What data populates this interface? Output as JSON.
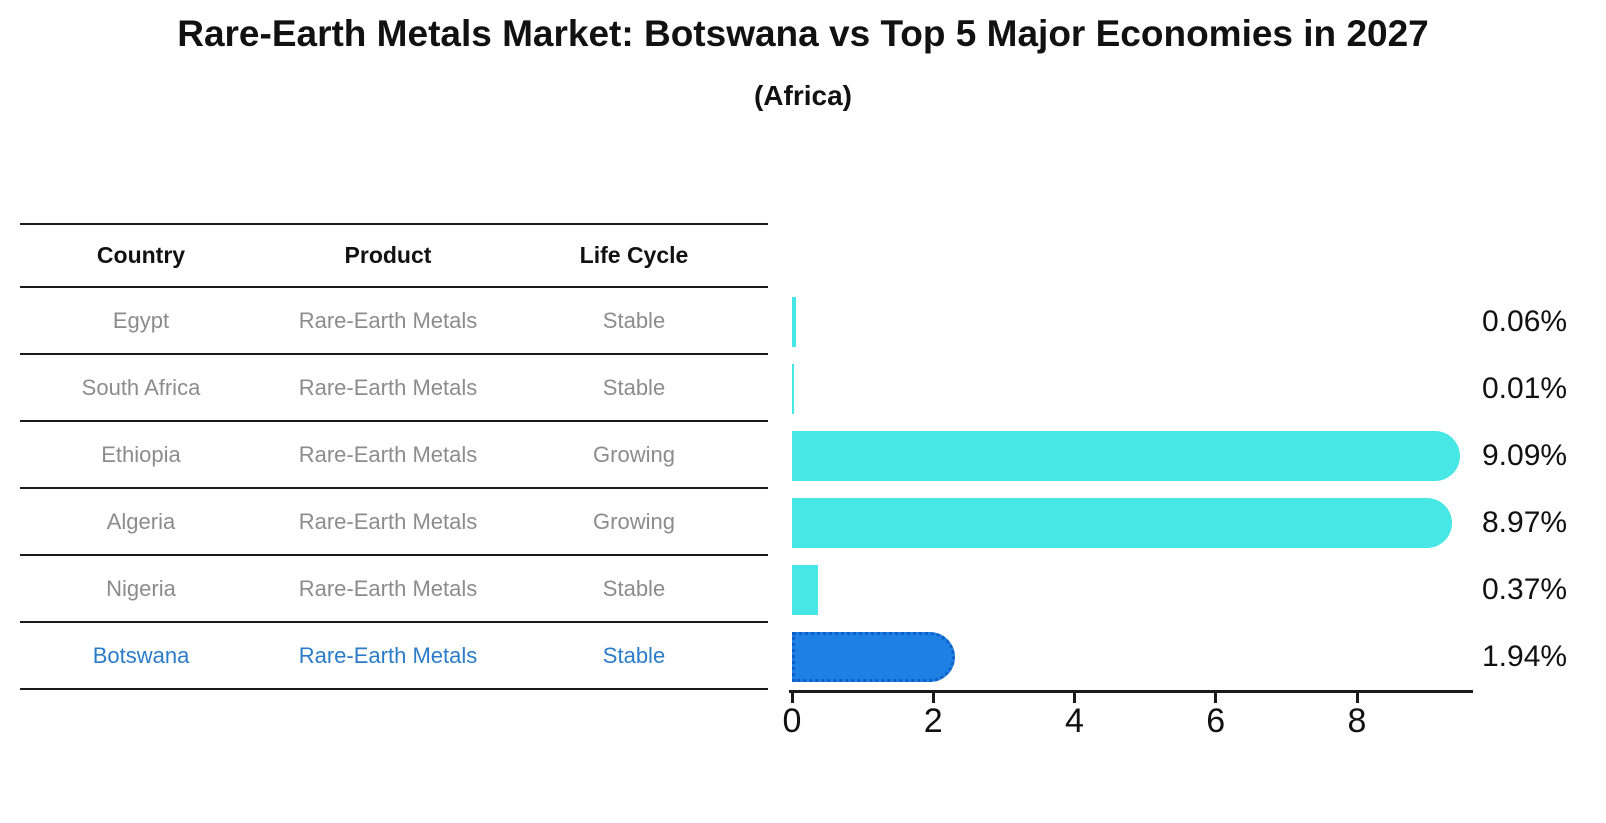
{
  "title": "Rare-Earth Metals Market: Botswana vs Top 5 Major Economies in 2027",
  "subtitle": "(Africa)",
  "table": {
    "headers": [
      "Country",
      "Product",
      "Life Cycle"
    ],
    "rows": [
      {
        "country": "Egypt",
        "product": "Rare-Earth Metals",
        "life_cycle": "Stable",
        "highlighted": false
      },
      {
        "country": "South Africa",
        "product": "Rare-Earth Metals",
        "life_cycle": "Stable",
        "highlighted": false
      },
      {
        "country": "Ethiopia",
        "product": "Rare-Earth Metals",
        "life_cycle": "Growing",
        "highlighted": false
      },
      {
        "country": "Algeria",
        "product": "Rare-Earth Metals",
        "life_cycle": "Growing",
        "highlighted": false
      },
      {
        "country": "Nigeria",
        "product": "Rare-Earth Metals",
        "life_cycle": "Stable",
        "highlighted": false
      },
      {
        "country": "Botswana",
        "product": "Rare-Earth Metals",
        "life_cycle": "Stable",
        "highlighted": true
      }
    ]
  },
  "chart_data": {
    "type": "bar",
    "orientation": "horizontal",
    "title": "Rare-Earth Metals Market: Botswana vs Top 5 Major Economies in 2027",
    "subtitle": "(Africa)",
    "categories": [
      "Egypt",
      "South Africa",
      "Ethiopia",
      "Algeria",
      "Nigeria",
      "Botswana"
    ],
    "values": [
      0.06,
      0.01,
      9.09,
      8.97,
      0.37,
      1.94
    ],
    "value_labels": [
      "0.06%",
      "0.01%",
      "9.09%",
      "8.97%",
      "0.37%",
      "1.94%"
    ],
    "unit": "%",
    "highlight_index": 5,
    "xlim": [
      0,
      9.6
    ],
    "xticks": [
      0,
      2,
      4,
      6,
      8
    ],
    "grid": false,
    "legend": false,
    "value_label_position": "right-outside"
  },
  "colors": {
    "bar_default": "#46e7e4",
    "bar_highlight": "#1f80e4",
    "bar_highlight_edge": "#0d5fc5",
    "table_text": "#8c8c8c",
    "table_highlight_text": "#2a7cc9",
    "header_text": "#111111",
    "axis": "#1a1a1a"
  }
}
